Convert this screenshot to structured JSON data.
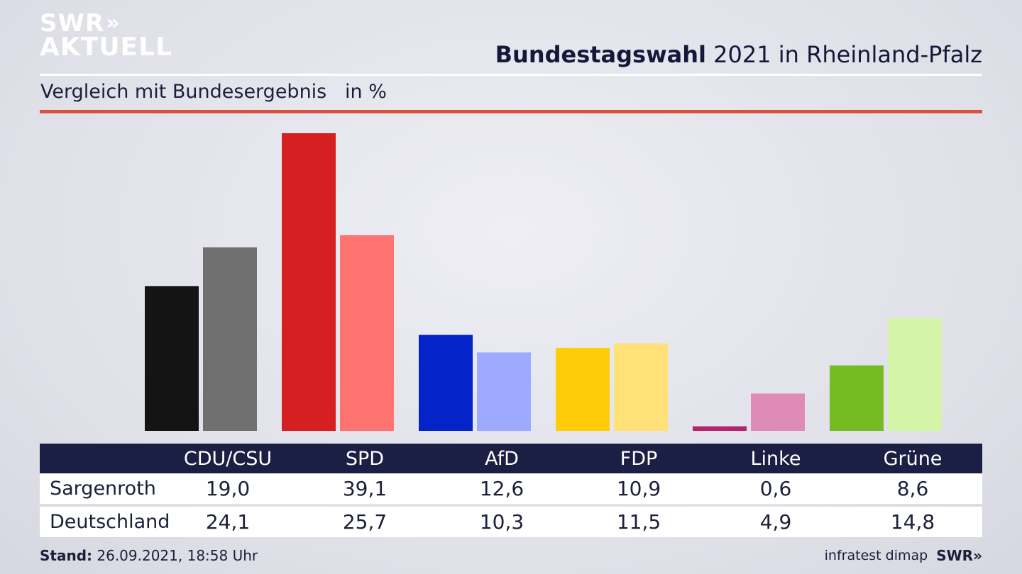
{
  "logo": {
    "line1": "SWR",
    "arrows": "»",
    "line2": "AKTUELL"
  },
  "header": {
    "title_bold": "Bundestagswahl",
    "title_rest": " 2021 in Rheinland-Pfalz"
  },
  "subtitle": "Vergleich mit Bundesergebnis   in %",
  "colors": {
    "cdu": [
      "#141414",
      "#717070"
    ],
    "spd": [
      "#d51f20",
      "#ff7470"
    ],
    "afd": [
      "#0423c9",
      "#9eaaff"
    ],
    "fdp": [
      "#ffcc0a",
      "#ffe177"
    ],
    "linke": [
      "#b1266c",
      "#e08ab8"
    ],
    "gruene": [
      "#77bb22",
      "#d4f5a8"
    ]
  },
  "chart_data": {
    "type": "bar",
    "categories": [
      "CDU/CSU",
      "SPD",
      "AfD",
      "FDP",
      "Linke",
      "Grüne"
    ],
    "series": [
      {
        "name": "Sargenroth",
        "values": [
          19.0,
          39.1,
          12.6,
          10.9,
          0.6,
          8.6
        ]
      },
      {
        "name": "Deutschland",
        "values": [
          24.1,
          25.7,
          10.3,
          11.5,
          4.9,
          14.8
        ]
      }
    ],
    "title": "Bundestagswahl 2021 in Rheinland-Pfalz",
    "subtitle": "Vergleich mit Bundesergebnis   in %",
    "ylim": [
      0,
      39.1
    ],
    "grid": false,
    "legend": "table-below"
  },
  "table": {
    "rows": [
      {
        "label": "Sargenroth",
        "values": [
          "19,0",
          "39,1",
          "12,6",
          "10,9",
          "0,6",
          "8,6"
        ]
      },
      {
        "label": "Deutschland",
        "values": [
          "24,1",
          "25,7",
          "10,3",
          "11,5",
          "4,9",
          "14,8"
        ]
      }
    ]
  },
  "footer": {
    "stand_label": "Stand:",
    "stand_value": " 26.09.2021, 18:58 Uhr",
    "source": "infratest dimap",
    "brand": "SWR»"
  }
}
